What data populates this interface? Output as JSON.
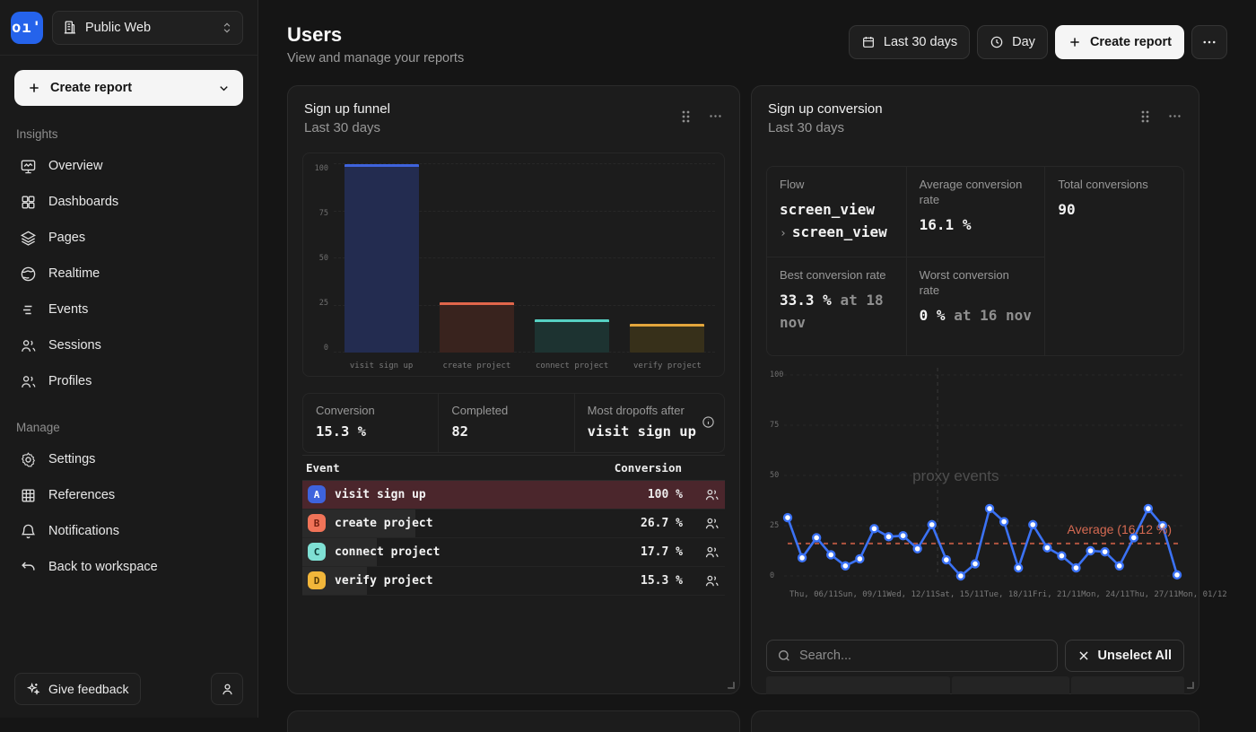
{
  "sidebar": {
    "logo_text": "oı'",
    "workspace_name": "Public Web",
    "create_report_label": "Create report",
    "sections": [
      {
        "label": "Insights",
        "items": [
          {
            "label": "Overview"
          },
          {
            "label": "Dashboards"
          },
          {
            "label": "Pages"
          },
          {
            "label": "Realtime"
          },
          {
            "label": "Events"
          },
          {
            "label": "Sessions"
          },
          {
            "label": "Profiles"
          }
        ]
      },
      {
        "label": "Manage",
        "items": [
          {
            "label": "Settings"
          },
          {
            "label": "References"
          },
          {
            "label": "Notifications"
          },
          {
            "label": "Back to workspace"
          }
        ]
      }
    ],
    "feedback_label": "Give feedback"
  },
  "header": {
    "title": "Users",
    "subtitle": "View and manage your reports",
    "range_label": "Last 30 days",
    "interval_label": "Day",
    "create_report_label": "Create report"
  },
  "funnel_card": {
    "title": "Sign up funnel",
    "subtitle": "Last 30 days",
    "stats": {
      "conversion_label": "Conversion",
      "conversion_value": "15.3 %",
      "completed_label": "Completed",
      "completed_value": "82",
      "dropoffs_label": "Most dropoffs after",
      "dropoffs_value": "visit sign up"
    },
    "table": {
      "col_event": "Event",
      "col_conversion": "Conversion",
      "rows": [
        {
          "badge": "A",
          "badge_bg": "#3e63dd",
          "badge_fg": "#ffffff",
          "label": "visit sign up",
          "value": "100 %",
          "progress": 100,
          "highlight": true
        },
        {
          "badge": "B",
          "badge_bg": "#f07358",
          "badge_fg": "#731f10",
          "label": "create project",
          "value": "26.7 %",
          "progress": 26.7,
          "highlight": false
        },
        {
          "badge": "C",
          "badge_bg": "#7fe0d4",
          "badge_fg": "#0c3b36",
          "label": "connect project",
          "value": "17.7 %",
          "progress": 17.7,
          "highlight": false
        },
        {
          "badge": "D",
          "badge_bg": "#f2b63a",
          "badge_fg": "#5a3d07",
          "label": "verify project",
          "value": "15.3 %",
          "progress": 15.3,
          "highlight": false
        }
      ]
    }
  },
  "conversion_card": {
    "title": "Sign up conversion",
    "subtitle": "Last 30 days",
    "stats": {
      "flow_label": "Flow",
      "flow_step1": "screen_view",
      "flow_step2": "screen_view",
      "flow_chevron": "›",
      "avg_label": "Average conversion rate",
      "avg_value": "16.1 %",
      "total_label": "Total conversions",
      "total_value": "90",
      "best_label": "Best conversion rate",
      "best_value": "33.3 %",
      "best_suffix": "at 18 nov",
      "worst_label": "Worst conversion rate",
      "worst_value": "0 %",
      "worst_suffix": "at 16 nov"
    },
    "search_placeholder": "Search...",
    "unselect_label": "Unselect All"
  },
  "chart_data": [
    {
      "type": "bar",
      "title": "Sign up funnel",
      "categories": [
        "visit sign up",
        "create project",
        "connect project",
        "verify project"
      ],
      "values": [
        100,
        26.7,
        17.7,
        15.3
      ],
      "ylim": [
        0,
        100
      ],
      "yticks": [
        0,
        25,
        50,
        75,
        100
      ],
      "grid": true,
      "bar_colors": [
        "#3e63dd",
        "#e1664b",
        "#56d2c4",
        "#e3a63c"
      ],
      "bar_fills": [
        "#232c50",
        "#39231e",
        "#1d3331",
        "#37301a"
      ]
    },
    {
      "type": "line",
      "title": "Sign up conversion",
      "x_tick_labels": [
        "Thu, 06/11",
        "Sun, 09/11",
        "Wed, 12/11",
        "Sat, 15/11",
        "Tue, 18/11",
        "Fri, 21/11",
        "Mon, 24/11",
        "Thu, 27/11",
        "Mon, 01/12"
      ],
      "values": [
        29,
        9,
        19,
        10.5,
        5,
        8.5,
        23.5,
        19.5,
        20,
        13.5,
        25.5,
        8,
        0,
        6,
        33.5,
        27,
        4,
        25.5,
        14,
        10,
        4,
        12.5,
        12,
        5,
        19,
        33.5,
        25,
        0.5
      ],
      "ylim": [
        0,
        100
      ],
      "yticks": [
        0,
        25,
        50,
        75,
        100
      ],
      "grid": true,
      "average": 16.12,
      "average_label": "Average (16.12 %)",
      "average_color": "#b0543f",
      "watermark": "proxy events",
      "line_color": "#3b72f5",
      "crosshair_x_fraction": 0.385
    }
  ]
}
